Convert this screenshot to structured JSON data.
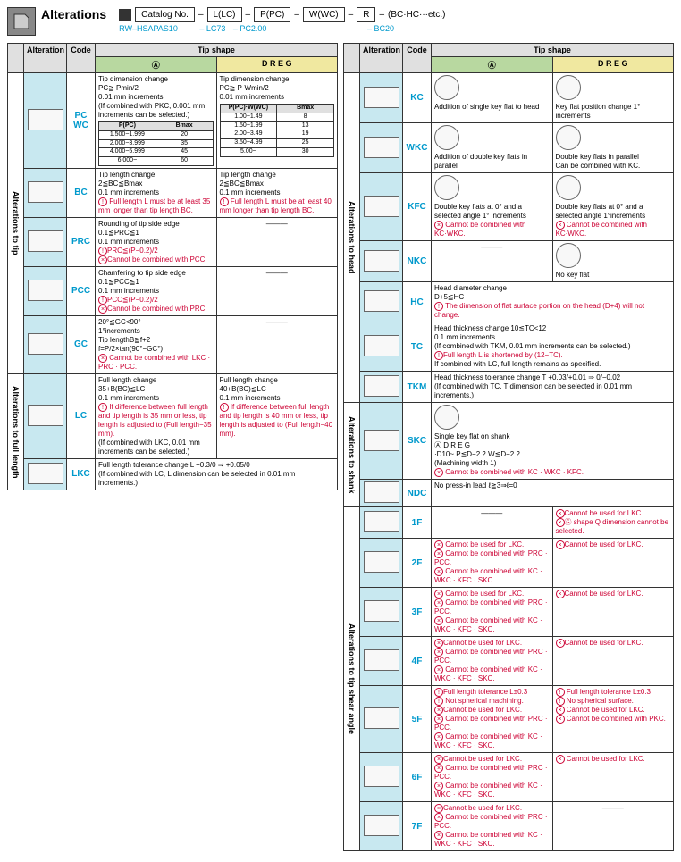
{
  "header": {
    "title": "Alterations",
    "catalog_label": "Catalog No.",
    "parts": [
      "L(LC)",
      "P(PC)",
      "W(WC)",
      "R",
      "(BC·HC···etc.)"
    ],
    "dashes": [
      "–",
      "–",
      "–",
      "–",
      "–"
    ],
    "example": [
      "RW–HSAPAS10",
      "– LC73",
      "– PC2.00",
      "– BC20"
    ],
    "example_gaps": [
      "0px",
      "22px",
      "6px",
      "110px"
    ]
  },
  "leftTable": {
    "headers": [
      "Alteration",
      "Code",
      "Tip shape"
    ],
    "subA": "Ⓐ",
    "subD": "D R E G",
    "groups": [
      {
        "vert": "Alterations to tip",
        "rows": [
          {
            "code": "PC\nWC",
            "descA": "Tip dimension change\nPC≧ Pmin/2\n0.01 mm increments\n(If combined with PKC, 0.001 mm increments can be selected.)",
            "descD": "Tip dimension change\nPC≧ P·Wmin/2\n0.01 mm increments",
            "tableA": {
              "h": [
                "P(PC)",
                "Bmax"
              ],
              "r": [
                [
                  "1.500~1.999",
                  "20"
                ],
                [
                  "2.000~3.999",
                  "35"
                ],
                [
                  "4.000~5.999",
                  "45"
                ],
                [
                  "6.000~",
                  "60"
                ]
              ]
            },
            "tableD": {
              "h": [
                "P(PC)·W(WC)",
                "Bmax"
              ],
              "r": [
                [
                  "1.00~1.49",
                  "8"
                ],
                [
                  "1.50~1.99",
                  "13"
                ],
                [
                  "2.00~3.49",
                  "19"
                ],
                [
                  "3.50~4.99",
                  "25"
                ],
                [
                  "5.00~",
                  "30"
                ]
              ]
            }
          },
          {
            "code": "BC",
            "descA": "Tip length change\n2≦BC≦Bmax\n0.1 mm increments\nⓕ Full length L must be at least 35 mm longer than tip length BC.",
            "descD": "Tip length change\n2≦BC≦Bmax\n0.1 mm increments\nⓕ Full length L must be at least 40 mm longer than tip length BC."
          },
          {
            "code": "PRC",
            "descA": "Rounding of tip side edge\n0.1≦PRC≦1\n0.1 mm increments\nⓕPRC≦(P−0.2)/2\nⓧCannot be combined with PCC.",
            "descD": "—"
          },
          {
            "code": "PCC",
            "descA": "Chamfering to tip side edge\n0.1≦PCC≦1\n0.1 mm increments\nⓕPCC≦(P−0.2)/2\nⓧCannot be combined with PRC.",
            "descD": "—"
          },
          {
            "code": "GC",
            "descA": "20°≦GC<90°\n1°increments\nTip lengthB≧f+2\nf=P/2×tan(90°−GC°)\nⓧ Cannot be combined with LKC · PRC · PCC.",
            "descD": "—"
          }
        ]
      },
      {
        "vert": "Alterations to full length",
        "rows": [
          {
            "code": "LC",
            "descA": "Full length change\n35+B(BC)≦LC<L\n0.1 mm increments\nⓕ If difference between full length and tip length is 35 mm or less, tip length is adjusted to (Full length−35 mm).\n(If combined with LKC, 0.01 mm increments can be selected.)",
            "descD": "Full length change\n40+B(BC)≦LC<L\n0.1 mm increments\nⓕ If difference between full length and tip length is 40 mm or less, tip length is adjusted to (Full length−40 mm)."
          },
          {
            "code": "LKC",
            "descA": "Full length tolerance change   L +0.3/0 ⇒ +0.05/0\n(If combined with LC, L dimension can be selected in 0.01 mm increments.)",
            "span": true
          }
        ]
      }
    ]
  },
  "rightTable": {
    "headers": [
      "Alteration",
      "Code",
      "Tip shape"
    ],
    "subA": "Ⓐ",
    "subD": "D R E G",
    "groups": [
      {
        "vert": "Alterations to head",
        "rows": [
          {
            "code": "KC",
            "descA": "Addition of single key flat to head",
            "descD": "Key flat position change 1° increments",
            "diagA": true,
            "diagD": true
          },
          {
            "code": "WKC",
            "descA": "Addition of double key flats in parallel",
            "descD": "Double key flats in parallel\nCan be combined with KC.",
            "diagA": true,
            "diagD": true
          },
          {
            "code": "KFC",
            "descA": "Double key flats at 0° and a selected angle 1° increments\nⓧ Cannot be combined with KC·WKC.",
            "descD": "Double key flats at 0° and a selected angle 1°increments\nⓧ Cannot be combined with KC·WKC.",
            "diagA": true,
            "diagD": true
          },
          {
            "code": "NKC",
            "descA": "—",
            "descD": "No key flat",
            "diagD": true
          },
          {
            "code": "HC",
            "descA": "Head diameter change\nD+5≦HC<H   0.1 mm increments\nⓕ The dimension of flat surface portion on the head (D+4) will not change.",
            "span": true
          },
          {
            "code": "TC",
            "descA": "Head thickness change 10≦TC<12\n0.1 mm increments\n(If combined with TKM, 0.01 mm increments can be selected.)\nⓕFull length L is shortened by (12−TC).\n   If combined with LC, full length remains as specified.",
            "span": true
          },
          {
            "code": "TKM",
            "descA": "Head thickness tolerance change   T +0.03/+0.01 ⇒ 0/−0.02\n(If combined with TC, T dimension can be selected in 0.01 mm increments.)",
            "span": true
          }
        ]
      },
      {
        "vert": "Alterations to shank",
        "rows": [
          {
            "code": "SKC",
            "descA": "Single key flat on shank\nⒶ            D R E G\n·D10~   P≦D−2.2   W≦D−2.2\n(Machining width 1)\nⓧ Cannot be combined with KC · WKC · KFC.",
            "span": true,
            "diagA": true
          },
          {
            "code": "NDC",
            "descA": "No press-in lead   ℓ≧3⇒ℓ=0",
            "span": true
          }
        ]
      },
      {
        "vert": "Alterations to tip shear angle",
        "rows": [
          {
            "code": "1F",
            "descA": "—",
            "descD": "ⓧCannot be used for LKC.\nⓧⒼ shape Q dimension cannot be selected."
          },
          {
            "code": "2F",
            "descA": "ⓧ Cannot be used for LKC.\nⓧ Cannot be combined with PRC · PCC.\nⓧ Cannot be combined with KC · WKC · KFC · SKC.",
            "descD": "ⓧCannot be used for LKC."
          },
          {
            "code": "3F",
            "descA": "ⓧ Cannot be used for LKC.\nⓧ Cannot be combined with PRC · PCC.\nⓧ Cannot be combined with KC · WKC · KFC · SKC.",
            "descD": "ⓧCannot be used for LKC."
          },
          {
            "code": "4F",
            "descA": "ⓧCannot be used for LKC.\nⓧ Cannot be combined with PRC · PCC.\nⓧ Cannot be combined with KC · WKC · KFC · SKC.",
            "descD": "ⓧCannot be used for LKC."
          },
          {
            "code": "5F",
            "descA": "ⓕFull length tolerance L±0.3\nⓕ Not spherical machining.\nⓧCannot be used for LKC.\nⓧ Cannot be combined with PRC · PCC.\nⓧ Cannot be combined with KC · WKC · KFC · SKC.",
            "descD": "ⓕ Full length tolerance L±0.3\nⓕ No spherical surface.\nⓧ Cannot be used for LKC.\nⓧ Cannot be combined with PKC."
          },
          {
            "code": "6F",
            "descA": "ⓧCannot be used for LKC.\nⓧ Cannot be combined with PRC · PCC.\nⓧ Cannot be combined with KC · WKC · KFC · SKC.",
            "descD": "ⓧ Cannot be used for LKC."
          },
          {
            "code": "7F",
            "descA": "ⓧCannot be used for LKC.\nⓧ Cannot be combined with PRC · PCC.\nⓧ Cannot be combined with KC · WKC · KFC · SKC.",
            "descD": "—"
          }
        ]
      }
    ]
  }
}
